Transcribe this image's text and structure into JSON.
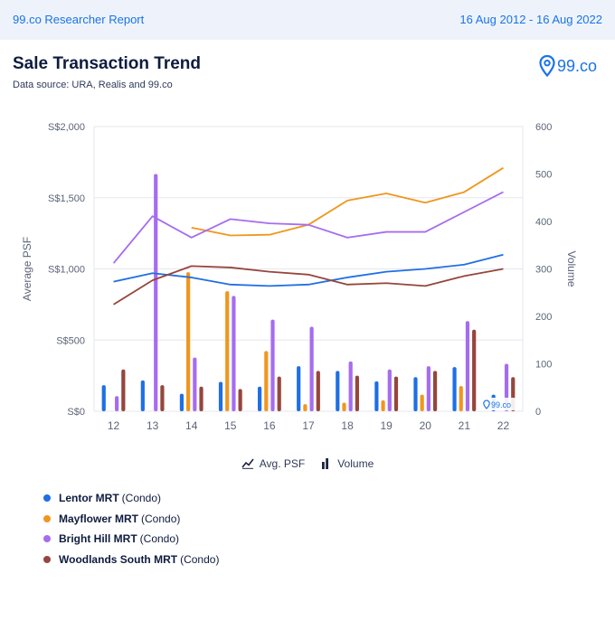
{
  "header": {
    "left_text": "99.co Researcher Report",
    "right_text": "16 Aug 2012 - 16 Aug 2022"
  },
  "report": {
    "title": "Sale Transaction Trend",
    "subtitle": "Data source: URA, Realis and 99.co",
    "logo_text": "99.co",
    "watermark_text": "99.co"
  },
  "legend_toggles": {
    "avg_psf": "Avg. PSF",
    "volume": "Volume"
  },
  "chart_data": {
    "type": "bar+line",
    "categories": [
      "12",
      "13",
      "14",
      "15",
      "16",
      "17",
      "18",
      "19",
      "20",
      "21",
      "22"
    ],
    "ylabel_left": "Average PSF",
    "ylabel_right": "Volume",
    "y_left_ticks": [
      "S$0",
      "S$500",
      "S$1,000",
      "S$1,500",
      "S$2,000"
    ],
    "y_right_ticks": [
      "0",
      "100",
      "200",
      "300",
      "400",
      "500",
      "600"
    ],
    "ylim_left": [
      0,
      2000
    ],
    "ylim_right": [
      0,
      600
    ],
    "series": [
      {
        "name": "Lentor MRT",
        "type": "Condo",
        "color": "#1f6fe5",
        "psf": [
          910,
          970,
          940,
          890,
          880,
          890,
          940,
          980,
          1000,
          1030,
          1100
        ],
        "volume": [
          55,
          65,
          37,
          62,
          52,
          95,
          85,
          63,
          72,
          93,
          35
        ]
      },
      {
        "name": "Mayflower MRT",
        "type": "Condo",
        "color": "#f0961f",
        "psf": [
          null,
          null,
          1290,
          1235,
          1240,
          1310,
          1480,
          1530,
          1465,
          1540,
          1710
        ],
        "volume": [
          0,
          0,
          293,
          253,
          127,
          15,
          18,
          23,
          35,
          53,
          0
        ]
      },
      {
        "name": "Bright Hill MRT",
        "type": "Condo",
        "color": "#a66cf0",
        "psf": [
          1040,
          1370,
          1220,
          1350,
          1320,
          1310,
          1220,
          1260,
          1260,
          1400,
          1540
        ],
        "volume": [
          32,
          500,
          113,
          243,
          193,
          178,
          105,
          88,
          95,
          190,
          100
        ]
      },
      {
        "name": "Woodlands South MRT",
        "type": "Condo",
        "color": "#96463c",
        "psf": [
          750,
          920,
          1020,
          1010,
          980,
          960,
          890,
          900,
          880,
          950,
          1000
        ],
        "volume": [
          88,
          55,
          52,
          47,
          73,
          85,
          75,
          73,
          85,
          172,
          72
        ]
      }
    ]
  }
}
